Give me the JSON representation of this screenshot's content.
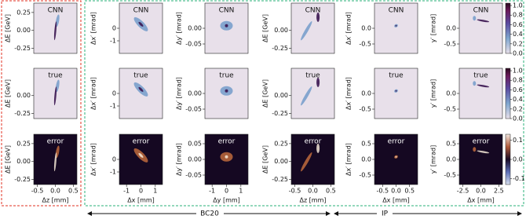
{
  "chart_data": [
    {
      "type": "heatmap",
      "title": "CNN",
      "ylabel": "ΔE [GeV]",
      "ylim": [
        -0.32,
        0.38
      ],
      "yticks": [
        0.25,
        {
          "value": 0,
          "label": "0.00"
        },
        -0.25
      ]
    },
    {
      "type": "heatmap",
      "title": "CNN",
      "ylabel": "Δx′ [mrad]",
      "ylim": [
        -2,
        2
      ],
      "yticks": [
        0,
        -1
      ]
    },
    {
      "type": "heatmap",
      "title": "CNN",
      "ylabel": "Δy′ [mrad]",
      "ylim": [
        -0.08,
        0.08
      ],
      "yticks": [
        {
          "value": 0,
          "label": "0.00"
        },
        -0.05
      ]
    },
    {
      "type": "heatmap",
      "title": "CNN",
      "ylabel": "ΔE [GeV]",
      "ylim": [
        -0.32,
        0.38
      ],
      "yticks": [
        {
          "value": 0,
          "label": "0.00"
        },
        -0.25
      ]
    },
    {
      "type": "heatmap",
      "title": "CNN",
      "ylabel": "Δx′ [mrad]",
      "ylim": [
        -0.8,
        0.8
      ],
      "yticks": [
        {
          "value": 0,
          "label": "0.0"
        },
        -0.5
      ]
    },
    {
      "type": "heatmap",
      "title": "CNN",
      "ylabel": "y′ [mrad]",
      "ylim": [
        -0.8,
        0.8
      ],
      "yticks": [
        {
          "value": 0,
          "label": "0.0"
        },
        -0.5
      ],
      "cbar_lim": [
        0,
        1.05
      ],
      "cbar_ticks": [
        {
          "value": 0,
          "label": "0.0"
        },
        0.2,
        0.4,
        0.6,
        0.8,
        {
          "value": 1,
          "label": "1.0"
        }
      ]
    },
    {
      "type": "heatmap",
      "title": "true",
      "ylabel": "ΔE [GeV]",
      "ylim": [
        -0.32,
        0.38
      ],
      "yticks": [
        {
          "value": 0,
          "label": "0.00"
        },
        -0.25
      ]
    },
    {
      "type": "heatmap",
      "title": "true",
      "ylabel": "Δx′ [mrad]",
      "ylim": [
        -2,
        2
      ],
      "yticks": [
        0,
        -1
      ]
    },
    {
      "type": "heatmap",
      "title": "true",
      "ylabel": "Δy′ [mrad]",
      "ylim": [
        -0.08,
        0.08
      ],
      "yticks": [
        {
          "value": 0,
          "label": "0.00"
        },
        -0.05
      ]
    },
    {
      "type": "heatmap",
      "title": "true",
      "ylabel": "ΔE [GeV]",
      "ylim": [
        -0.32,
        0.38
      ],
      "yticks": [
        {
          "value": 0,
          "label": "0.00"
        },
        -0.25
      ]
    },
    {
      "type": "heatmap",
      "title": "true",
      "ylabel": "Δx′ [mrad]",
      "ylim": [
        -0.8,
        0.8
      ],
      "yticks": [
        {
          "value": 0,
          "label": "0.0"
        },
        -0.5
      ]
    },
    {
      "type": "heatmap",
      "title": "true",
      "ylabel": "y′ [mrad]",
      "ylim": [
        -0.8,
        0.8
      ],
      "yticks": [
        {
          "value": 0,
          "label": "0.0"
        },
        -0.5
      ],
      "cbar_lim": [
        0,
        1.05
      ],
      "cbar_ticks": [
        {
          "value": 0,
          "label": "0.0"
        },
        0.2,
        0.4,
        0.6,
        0.8,
        {
          "value": 1,
          "label": "1.0"
        }
      ]
    },
    {
      "type": "heatmap",
      "title": "error",
      "ylabel": "ΔE [GeV]",
      "ylim": [
        -0.32,
        0.38
      ],
      "yticks": [
        0.25,
        {
          "value": 0,
          "label": "0.00"
        },
        -0.25
      ],
      "xlabel": "Δz [mm]",
      "xlim": [
        -0.6,
        0.6
      ],
      "xticks": [
        -0.5,
        {
          "value": 0,
          "label": "0.0"
        },
        0.5
      ]
    },
    {
      "type": "heatmap",
      "title": "error",
      "ylabel": "Δx′ [mrad]",
      "ylim": [
        -2,
        2
      ],
      "yticks": [
        0,
        -1
      ],
      "xlabel": "Δx [mm]",
      "xlim": [
        -1.5,
        1.5
      ],
      "xticks": [
        -1,
        0,
        1
      ]
    },
    {
      "type": "heatmap",
      "title": "error",
      "ylabel": "Δy′ [mrad]",
      "ylim": [
        -0.08,
        0.08
      ],
      "yticks": [
        0.05,
        {
          "value": 0,
          "label": "0.00"
        },
        -0.05
      ],
      "xlabel": "Δy [mm]",
      "xlim": [
        -1.5,
        1.5
      ],
      "xticks": [
        -1,
        0,
        1
      ]
    },
    {
      "type": "heatmap",
      "title": "error",
      "ylabel": "ΔE [GeV]",
      "ylim": [
        -0.32,
        0.38
      ],
      "yticks": [
        0.25,
        {
          "value": 0,
          "label": "0.00"
        },
        -0.25
      ],
      "xlabel": "Δz [mm]",
      "xlim": [
        -0.6,
        0.6
      ],
      "xticks": [
        -0.5,
        {
          "value": 0,
          "label": "0.0"
        },
        0.5
      ]
    },
    {
      "type": "heatmap",
      "title": "error",
      "ylabel": "Δx′ [mrad]",
      "ylim": [
        -0.8,
        0.8
      ],
      "yticks": [
        0.5,
        {
          "value": 0,
          "label": "0.0"
        },
        -0.5
      ],
      "xlabel": "Δx [mm]",
      "xlim": [
        -0.8,
        0.8
      ],
      "xticks": [
        -0.5,
        {
          "value": 0,
          "label": "0.0"
        },
        0.5
      ]
    },
    {
      "type": "heatmap",
      "title": "error",
      "ylabel": "y′ [mrad]",
      "ylim": [
        -0.8,
        0.8
      ],
      "yticks": [
        0.5,
        {
          "value": 0,
          "label": "0.0"
        },
        -0.5
      ],
      "xlabel": "Δx [mm]",
      "xlim": [
        -3,
        3
      ],
      "xticks": [
        -2.5,
        {
          "value": 0,
          "label": "0.0"
        },
        2.5
      ],
      "cbar_lim": [
        -0.13,
        0.13
      ],
      "cbar_ticks": [
        0.1,
        {
          "value": 0,
          "label": "0.0"
        },
        -0.1
      ]
    }
  ],
  "sections": [
    "BC20",
    "IP"
  ]
}
